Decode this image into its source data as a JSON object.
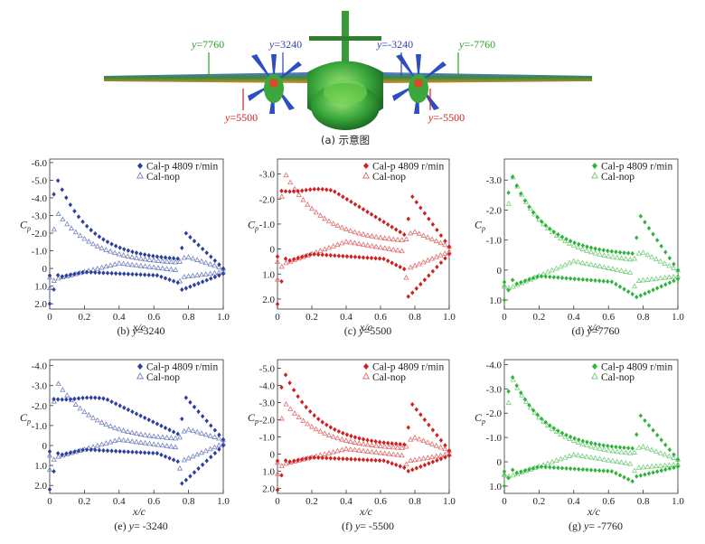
{
  "figure": {
    "caption_a": "(a) 示意图",
    "labels": {
      "y7760": {
        "var": "y",
        "text": "=7760",
        "color": "#2aa02a"
      },
      "y3240": {
        "var": "y",
        "text": "=3240",
        "color": "#3344aa"
      },
      "ym3240": {
        "var": "y",
        "text": "=-3240",
        "color": "#3344aa"
      },
      "ym7760": {
        "var": "y",
        "text": "=-7760",
        "color": "#2aa02a"
      },
      "y5500": {
        "var": "y",
        "text": "=5500",
        "color": "#cc2222"
      },
      "ym5500": {
        "var": "y",
        "text": "=-5500",
        "color": "#cc2222"
      }
    },
    "colors": {
      "blue": "#2b3f9e",
      "red": "#d01f1f",
      "green": "#2fb33a"
    }
  },
  "chart_data": [
    {
      "type": "scatter",
      "id": "b",
      "caption_prefix": "(b) ",
      "caption_var": "y",
      "caption_val": "=3240",
      "color": "#2b3f9e",
      "ylim": [
        2.3,
        -6.2
      ],
      "yticks": [
        -6,
        -5,
        -4,
        -3,
        -2,
        -1,
        0,
        1,
        2
      ],
      "yticklabels": [
        "-6.0",
        "-5.0",
        "-4.0",
        "-3.0",
        "-2.0",
        "-1.0",
        "0",
        "1.0",
        "2.0"
      ],
      "peak_p": -5.4,
      "peak_n": -3.3,
      "lower_le": 2.0,
      "shock_top": -2.0,
      "shock_bot": 1.2,
      "te": 0.0,
      "legend": [
        "Cal-p 4809 r/min",
        "Cal-nop"
      ]
    },
    {
      "type": "scatter",
      "id": "c",
      "caption_prefix": "(c) ",
      "caption_var": "y",
      "caption_val": "=5500",
      "color": "#d01f1f",
      "ylim": [
        2.4,
        -3.6
      ],
      "yticks": [
        -3,
        -2,
        -1,
        0,
        1,
        2
      ],
      "yticklabels": [
        "-3.0",
        "-2.0",
        "-1.0",
        "0",
        "1.0",
        "2.0"
      ],
      "peak_p": -2.35,
      "peak_n": -3.15,
      "lower_le": 2.2,
      "shock_top": -2.1,
      "shock_bot": 1.9,
      "te": -0.1,
      "plateau": true,
      "legend": [
        "Cal-p 4809 r/min",
        "Cal-nop"
      ]
    },
    {
      "type": "scatter",
      "id": "d",
      "caption_prefix": "(d) ",
      "caption_var": "y",
      "caption_val": "=7760",
      "color": "#2fb33a",
      "ylim": [
        1.3,
        -3.7
      ],
      "yticks": [
        -3,
        -2,
        -1,
        0,
        1
      ],
      "yticklabels": [
        "-3.0",
        "-2.0",
        "-1.0",
        "0",
        "1.0"
      ],
      "peak_p": -3.35,
      "peak_n": -3.3,
      "lower_le": 1.0,
      "shock_top": -1.8,
      "shock_bot": 0.9,
      "te": 0.0,
      "legend": [
        "Cal-p 4809 r/min",
        "Cal-nop"
      ]
    },
    {
      "type": "scatter",
      "id": "e",
      "caption_prefix": "(e) ",
      "caption_var": "y",
      "caption_val": "= -3240",
      "color": "#2b3f9e",
      "ylim": [
        2.4,
        -4.3
      ],
      "yticks": [
        -4,
        -3,
        -2,
        -1,
        0,
        1,
        2
      ],
      "yticklabels": [
        "-4.0",
        "-3.0",
        "-2.0",
        "-1.0",
        "0",
        "1.0",
        "2.0"
      ],
      "peak_p": -2.35,
      "peak_n": -3.3,
      "lower_le": 2.2,
      "shock_top": -2.4,
      "shock_bot": 1.9,
      "te": -0.3,
      "plateau": true,
      "legend": [
        "Cal-p 4809 r/min",
        "Cal-nop"
      ]
    },
    {
      "type": "scatter",
      "id": "f",
      "caption_prefix": "(f) ",
      "caption_var": "y",
      "caption_val": "= -5500",
      "color": "#d01f1f",
      "ylim": [
        2.3,
        -5.5
      ],
      "yticks": [
        -5,
        -4,
        -3,
        -2,
        -1,
        0,
        1,
        2
      ],
      "yticklabels": [
        "-5.0",
        "-4.0",
        "-3.0",
        "-2.0",
        "-1.0",
        "0",
        "1.0",
        "2.0"
      ],
      "peak_p": -5.0,
      "peak_n": -3.1,
      "lower_le": 2.1,
      "shock_top": -2.9,
      "shock_bot": 1.0,
      "te": -0.2,
      "legend": [
        "Cal-p 4809 r/min",
        "Cal-nop"
      ]
    },
    {
      "type": "scatter",
      "id": "g",
      "caption_prefix": "(g) ",
      "caption_var": "y",
      "caption_val": "= -7760",
      "color": "#2fb33a",
      "ylim": [
        1.3,
        -4.2
      ],
      "yticks": [
        -4,
        -3,
        -2,
        -1,
        0,
        1
      ],
      "yticklabels": [
        "-4.0",
        "-3.0",
        "-2.0",
        "-1.0",
        "0",
        "1.0"
      ],
      "peak_p": -3.75,
      "peak_n": -3.6,
      "lower_le": 1.0,
      "shock_top": -1.9,
      "shock_bot": 0.6,
      "te": -0.1,
      "legend": [
        "Cal-p 4809 r/min",
        "Cal-nop"
      ]
    }
  ],
  "axes": {
    "xlabel": "x/c",
    "ylabel": "C",
    "ylabel_sub": "p",
    "xticks": [
      0,
      0.2,
      0.4,
      0.6,
      0.8,
      1.0
    ],
    "xticklabels": [
      "0",
      "0.2",
      "0.4",
      "0.6",
      "0.8",
      "1.0"
    ]
  }
}
